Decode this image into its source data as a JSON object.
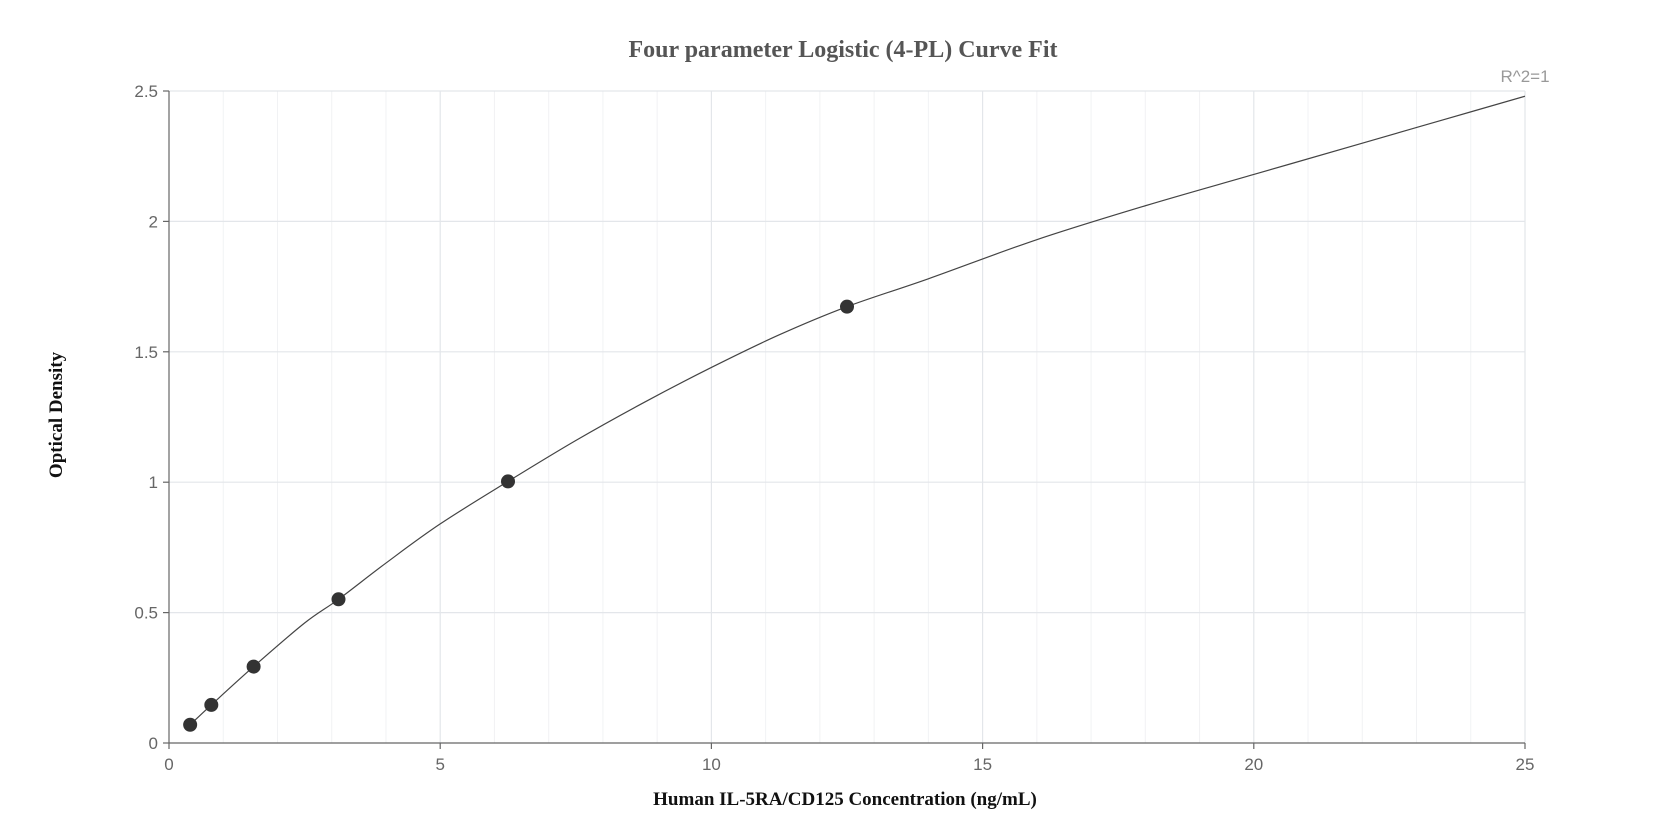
{
  "chart_data": {
    "type": "scatter",
    "title": "Four parameter Logistic (4-PL) Curve Fit",
    "xlabel": "Human IL-5RA/CD125 Concentration (ng/mL)",
    "ylabel": "Optical Density",
    "annotation": "R^2=1",
    "xlim": [
      0,
      25
    ],
    "ylim": [
      0,
      2.5
    ],
    "x_ticks": [
      "0",
      "5",
      "10",
      "15",
      "20",
      "25"
    ],
    "y_ticks": [
      "0",
      "0.5",
      "1",
      "1.5",
      "2",
      "2.5"
    ],
    "grid": true,
    "legend": "none",
    "series": [
      {
        "x": [
          0.39,
          0.78,
          1.56,
          3.125,
          6.25,
          12.5
        ],
        "y": [
          0.07,
          0.146,
          0.293,
          0.551,
          1.003,
          1.673
        ]
      }
    ],
    "fit_curve": {
      "x": [
        0.39,
        0.78,
        1.56,
        2.5,
        3.125,
        4,
        5,
        6.25,
        7.5,
        8.75,
        10,
        11.25,
        12.5,
        14,
        16,
        18,
        20,
        22,
        23.5,
        25
      ],
      "y": [
        0.07,
        0.146,
        0.293,
        0.46,
        0.551,
        0.69,
        0.84,
        1.003,
        1.16,
        1.305,
        1.44,
        1.565,
        1.673,
        1.78,
        1.93,
        2.06,
        2.18,
        2.3,
        2.39,
        2.48
      ]
    },
    "colors": {
      "points": "#333333",
      "curve": "#444444"
    }
  }
}
